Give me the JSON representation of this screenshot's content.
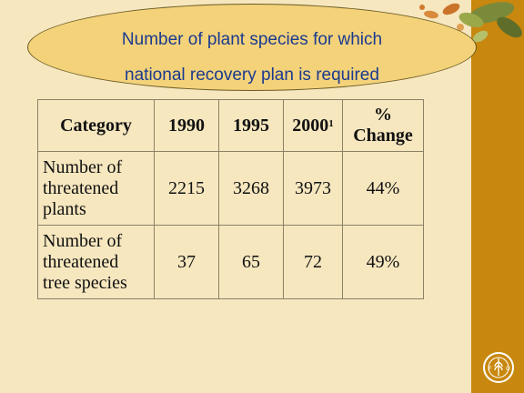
{
  "title": {
    "line1": "Number of plant species for which",
    "line2": "national recovery plan is required"
  },
  "table": {
    "headers": {
      "category": "Category",
      "y1990": "1990",
      "y1995": "1995",
      "y2000": "2000",
      "y2000_sup": "1",
      "change_line1": "%",
      "change_line2": "Change"
    },
    "rows": [
      {
        "category_line1": "Number of",
        "category_line2": "threatened",
        "category_line3": "plants",
        "y1990": "2215",
        "y1995": "3268",
        "y2000": "3973",
        "change": "44%"
      },
      {
        "category_line1": "Number of",
        "category_line2": "threatened",
        "category_line3": "tree species",
        "y1990": "37",
        "y1995": "65",
        "y2000": "72",
        "change": "49%"
      }
    ]
  },
  "colors": {
    "background": "#f6e7bf",
    "side_bar": "#c8870e",
    "oval": "#f3d27a",
    "title_text": "#1b3a8f"
  },
  "icons": [
    "leaves-decoration",
    "fao-logo-icon"
  ]
}
